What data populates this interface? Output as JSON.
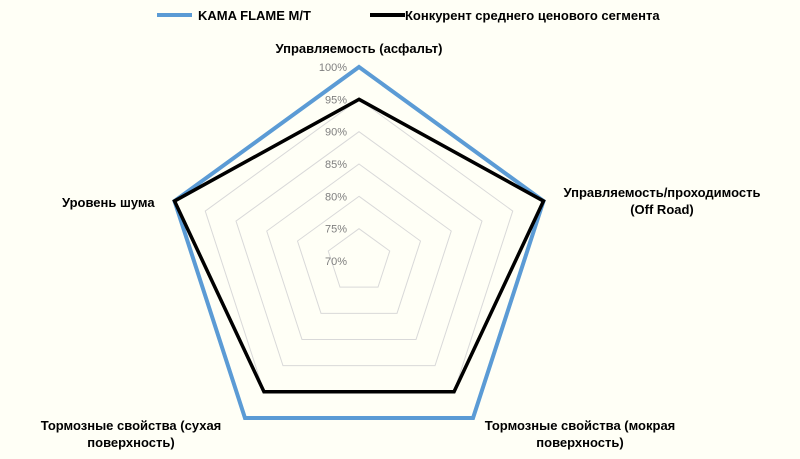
{
  "chart_data": {
    "type": "radar",
    "title": "",
    "axes": [
      "Управляемость (асфальт)",
      "Управляемость/проходимость (Off Road)",
      "Тормозные свойства (мокрая поверхность)",
      "Тормозные свойства (сухая поверхность)",
      "Уровень шума"
    ],
    "axis_label_lines": [
      [
        "Управляемость (асфальт)"
      ],
      [
        "Управляемость/проходимость",
        "(Off Road)"
      ],
      [
        "Тормозные свойства (мокрая",
        "поверхность)"
      ],
      [
        "Тормозные свойства (сухая",
        "поверхность)"
      ],
      [
        "Уровень шума"
      ]
    ],
    "rlim": [
      70,
      100
    ],
    "ticks": [
      "70%",
      "75%",
      "80%",
      "85%",
      "90%",
      "95%",
      "100%"
    ],
    "tick_values": [
      70,
      75,
      80,
      85,
      90,
      95,
      100
    ],
    "grid": true,
    "legend_position": "top",
    "series": [
      {
        "name": "KAMA FLAME M/T",
        "color": "#5b9bd5",
        "values": [
          100,
          100,
          100,
          100,
          100
        ]
      },
      {
        "name": "Конкурент среднего ценового сегмента",
        "color": "#000000",
        "values": [
          95,
          100,
          95,
          95,
          100
        ]
      }
    ]
  }
}
